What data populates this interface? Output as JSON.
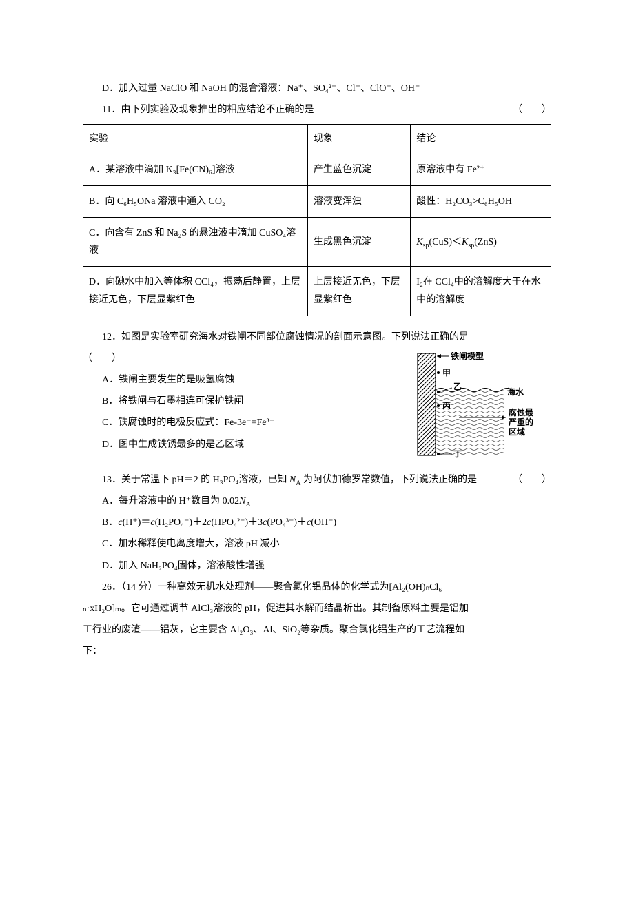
{
  "doc": {
    "background": "#ffffff",
    "text_color": "#000000",
    "font_family": "SimSun",
    "font_size_pt": 10.5,
    "line_height": 1.8
  },
  "optD_10": "D．加入过量 NaClO 和 NaOH 的混合溶液：Na⁺、SO₄²⁻、Cl⁻、ClO⁻、OH⁻",
  "q11": {
    "stem": "11．由下列实验及现象推出的相应结论不正确的是",
    "paren": "（　　）",
    "table": {
      "headers": [
        "实验",
        "现象",
        "结论"
      ],
      "rows": [
        {
          "exp": "A．某溶液中滴加 K₃[Fe(CN)₆]溶液",
          "phen": "产生蓝色沉淀",
          "conc": "原溶液中有 Fe²⁺"
        },
        {
          "exp": "B．向 C₆H₅ONa 溶液中通入 CO₂",
          "phen": "溶液变浑浊",
          "conc": "酸性：H₂CO₃>C₆H₅OH"
        },
        {
          "exp": "C．向含有 ZnS 和 Na₂S 的悬浊液中滴加 CuSO₄溶液",
          "phen": "生成黑色沉淀",
          "conc_html": "<span class='italic'>K</span><sub>sp</sub>(CuS)＜<span class='italic'>K</span><sub>sp</sub>(ZnS)"
        },
        {
          "exp": "D．向碘水中加入等体积 CCl₄，振荡后静置，上层接近无色，下层显紫红色",
          "phen": "上层接近无色，下层显紫红色",
          "conc": "I₂在 CCl₄中的溶解度大于在水中的溶解度"
        }
      ],
      "col_widths": [
        "48%",
        "22%",
        "30%"
      ],
      "border_color": "#000000"
    }
  },
  "q12": {
    "stem": "12．如图是实验室研究海水对铁闸不同部位腐蚀情况的剖面示意图。下列说法正确的是",
    "paren": "（　　）",
    "A": "A．铁闸主要发生的是吸氢腐蚀",
    "B": "B．将铁闸与石墨相连可保护铁闸",
    "C": "C．铁腐蚀时的电极反应式：Fe-3e⁻=Fe³⁺",
    "D": "D．图中生成铁锈最多的是乙区域",
    "diagram": {
      "labels": {
        "model": "铁闸模型",
        "jia": "甲",
        "yi": "乙",
        "bing": "丙",
        "ding": "丁",
        "sea": "海水",
        "corrode1": "腐蚀最",
        "corrode2": "严重的",
        "corrode3": "区域"
      },
      "colors": {
        "hatch": "#000000",
        "water_fill": "#ffffff",
        "water_lines": "#555555"
      }
    }
  },
  "q13": {
    "stem_a": "13．关于常温下 pH＝2 的 H₃PO₄溶液，已知 ",
    "stem_na": "N",
    "stem_na_sub": "A",
    "stem_b": " 为阿伏加德罗常数值，下列说法正确的是",
    "paren": "（　　）",
    "A_a": "A．每升溶液中的 H⁺数目为 0.02",
    "A_na": "N",
    "A_na_sub": "A",
    "B_html": "B．<span class='italic'>c</span>(H⁺)＝<span class='italic'>c</span>(H₂PO₄⁻)＋2<span class='italic'>c</span>(HPO₄²⁻)＋3<span class='italic'>c</span>(PO₄³⁻)＋<span class='italic'>c</span>(OH⁻)",
    "C": "C．加水稀释使电离度增大，溶液 pH 减小",
    "D": "D．加入 NaH₂PO₄固体，溶液酸性增强"
  },
  "q26": {
    "l1": "26．（14 分）一种高效无机水处理剂——聚合氯化铝晶体的化学式为[Al₂(OH)ₙCl₆₋",
    "l2": "ₙ·xH₂O]ₘ。它可通过调节 AlCl₃溶液的 pH，促进其水解而结晶析出。其制备原料主要是铝加",
    "l3": "工行业的废渣——铝灰，它主要含 Al₂O₃、Al、SiO₂等杂质。聚合氯化铝生产的工艺流程如",
    "l4": "下："
  }
}
